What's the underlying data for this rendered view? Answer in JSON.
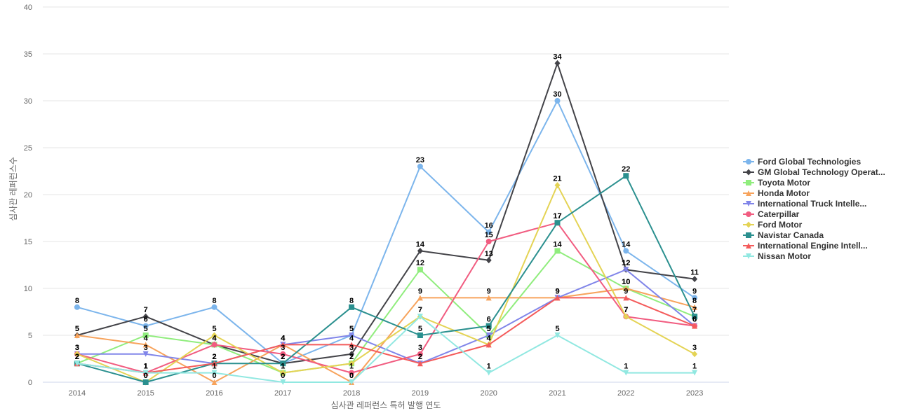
{
  "chart_data": {
    "type": "line",
    "xlabel": "심사관 레퍼런스 특허 발행 연도",
    "ylabel": "심사관 레퍼런스수",
    "x": [
      "2014",
      "2015",
      "2016",
      "2017",
      "2018",
      "2019",
      "2020",
      "2021",
      "2022",
      "2023"
    ],
    "ylim": [
      0,
      40
    ],
    "yticks": [
      0,
      5,
      10,
      15,
      20,
      25,
      30,
      35,
      40
    ],
    "grid": true,
    "legend_position": "right",
    "series": [
      {
        "name": "Ford Global Technologies",
        "color": "#7cb5ec",
        "marker": "circle",
        "values": [
          8,
          6,
          8,
          2,
          5,
          23,
          16,
          30,
          14,
          9
        ]
      },
      {
        "name": "GM Global Technology Operat...",
        "color": "#434348",
        "marker": "diamond",
        "values": [
          5,
          7,
          4,
          2,
          3,
          14,
          13,
          34,
          12,
          11
        ]
      },
      {
        "name": "Toyota Motor",
        "color": "#90ed7d",
        "marker": "square",
        "values": [
          2,
          5,
          4,
          1,
          2,
          12,
          5,
          14,
          10,
          7
        ]
      },
      {
        "name": "Honda Motor",
        "color": "#f7a35c",
        "marker": "triangle",
        "values": [
          5,
          4,
          0,
          4,
          0,
          9,
          9,
          9,
          10,
          8
        ]
      },
      {
        "name": "International Truck Intelle...",
        "color": "#8085e9",
        "marker": "triangle-down",
        "values": [
          3,
          3,
          2,
          4,
          5,
          2,
          5,
          9,
          12,
          6
        ]
      },
      {
        "name": "Caterpillar",
        "color": "#f15c80",
        "marker": "circle",
        "values": [
          3,
          1,
          4,
          3,
          1,
          3,
          15,
          17,
          7,
          6
        ]
      },
      {
        "name": "Ford Motor",
        "color": "#e4d354",
        "marker": "diamond",
        "values": [
          3,
          0,
          5,
          1,
          2,
          7,
          4,
          21,
          7,
          3
        ]
      },
      {
        "name": "Navistar Canada",
        "color": "#2b908f",
        "marker": "square",
        "values": [
          2,
          0,
          2,
          2,
          8,
          5,
          6,
          17,
          22,
          7
        ]
      },
      {
        "name": "International Engine Intell...",
        "color": "#f45b5b",
        "marker": "triangle",
        "values": [
          2,
          1,
          2,
          4,
          4,
          2,
          4,
          9,
          9,
          6
        ]
      },
      {
        "name": "Nissan Motor",
        "color": "#91e8e1",
        "marker": "triangle-down",
        "values": [
          2,
          1,
          1,
          0,
          0,
          7,
          1,
          5,
          1,
          1
        ]
      }
    ]
  }
}
